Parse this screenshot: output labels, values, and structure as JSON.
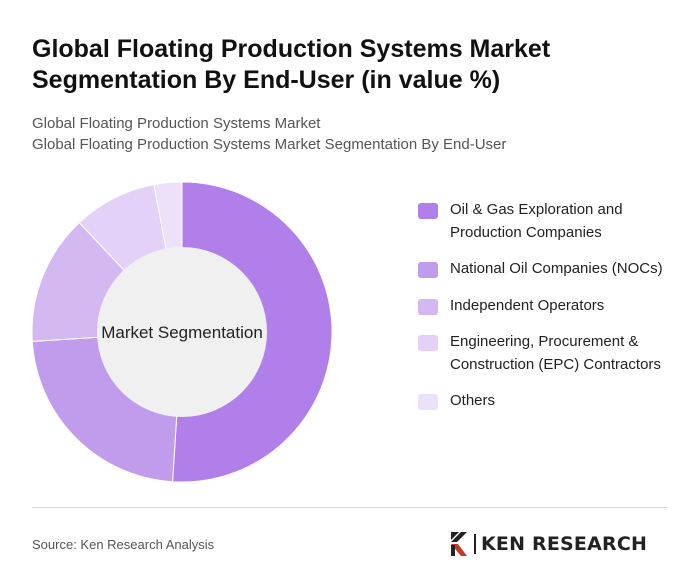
{
  "header": {
    "title": "Global Floating Production Systems Market Segmentation By End-User (in value %)",
    "subtitle_line1": "Global Floating Production Systems Market",
    "subtitle_line2": "Global Floating Production Systems Market Segmentation By End-User"
  },
  "chart_data": {
    "type": "pie",
    "style": "donut",
    "center_label": "Market Segmentation",
    "legend_position": "right",
    "series": [
      {
        "name": "Oil & Gas Exploration and Production Companies",
        "value": 51,
        "color": "#b07fea"
      },
      {
        "name": "National Oil Companies (NOCs)",
        "value": 23,
        "color": "#c19ced"
      },
      {
        "name": "Independent Operators",
        "value": 14,
        "color": "#d4b8f2"
      },
      {
        "name": "Engineering, Procurement & Construction (EPC) Contractors",
        "value": 9,
        "color": "#e3d1f7"
      },
      {
        "name": "Others",
        "value": 3,
        "color": "#ece1f9"
      }
    ]
  },
  "footer": {
    "source": "Source: Ken Research Analysis",
    "brand": "KEN RESEARCH"
  }
}
